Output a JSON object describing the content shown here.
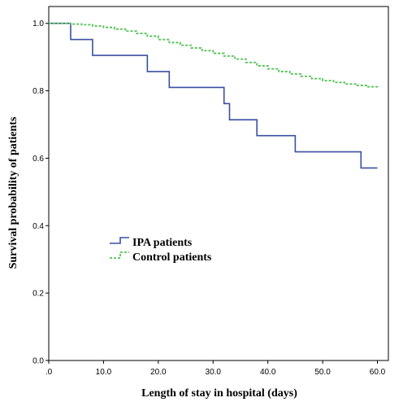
{
  "chart_data": {
    "type": "line",
    "subtype": "step",
    "title": "",
    "xlabel": "Length of stay in hospital (days)",
    "ylabel": "Survival probability of patients",
    "xlim": [
      0,
      62
    ],
    "ylim": [
      0,
      1.05
    ],
    "x_ticks": [
      0,
      10,
      20,
      30,
      40,
      50,
      60
    ],
    "x_tick_labels": [
      ".0",
      "10.0",
      "20.0",
      "30.0",
      "40.0",
      "50.0",
      "60.0"
    ],
    "y_ticks": [
      0,
      0.2,
      0.4,
      0.6,
      0.8,
      1.0
    ],
    "y_tick_labels": [
      "0.0",
      "0.2",
      "0.4",
      "0.6",
      "0.8",
      "1.0"
    ],
    "grid": false,
    "legend_position": "middle-left",
    "series": [
      {
        "name": "IPA patients",
        "color": "#3a4fa3",
        "dash": "solid",
        "x": [
          0,
          4,
          8,
          18,
          22,
          32,
          33,
          38,
          45,
          57,
          60
        ],
        "y": [
          1.0,
          0.952,
          0.905,
          0.857,
          0.81,
          0.762,
          0.714,
          0.667,
          0.619,
          0.571,
          0.571
        ]
      },
      {
        "name": "Control patients",
        "color": "#4fc24f",
        "dash": "dashed",
        "x": [
          0,
          4,
          6,
          8,
          10,
          12,
          14,
          16,
          18,
          20,
          22,
          24,
          26,
          28,
          30,
          32,
          34,
          36,
          38,
          40,
          42,
          44,
          46,
          48,
          50,
          52,
          54,
          56,
          58,
          60
        ],
        "y": [
          1.0,
          0.998,
          0.996,
          0.992,
          0.988,
          0.983,
          0.977,
          0.97,
          0.962,
          0.952,
          0.943,
          0.935,
          0.927,
          0.919,
          0.911,
          0.903,
          0.894,
          0.884,
          0.874,
          0.865,
          0.857,
          0.85,
          0.843,
          0.836,
          0.83,
          0.825,
          0.82,
          0.816,
          0.812,
          0.81
        ]
      }
    ]
  }
}
